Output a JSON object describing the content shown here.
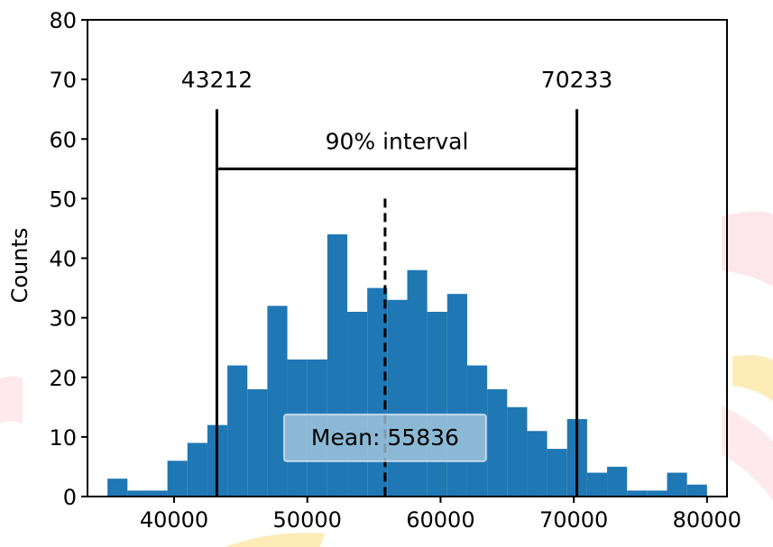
{
  "chart_data": {
    "type": "bar",
    "ylabel": "Counts",
    "xlim": [
      33500,
      81500
    ],
    "ylim": [
      0,
      80
    ],
    "xticks": [
      40000,
      50000,
      60000,
      70000,
      80000
    ],
    "yticks": [
      0,
      10,
      20,
      30,
      40,
      50,
      60,
      70,
      80
    ],
    "bar_color": "#1f77b4",
    "bins": [
      {
        "x0": 35000,
        "x1": 36500,
        "count": 3
      },
      {
        "x0": 36500,
        "x1": 38000,
        "count": 1
      },
      {
        "x0": 38000,
        "x1": 39500,
        "count": 1
      },
      {
        "x0": 39500,
        "x1": 41000,
        "count": 6
      },
      {
        "x0": 41000,
        "x1": 42500,
        "count": 9
      },
      {
        "x0": 42500,
        "x1": 44000,
        "count": 12
      },
      {
        "x0": 44000,
        "x1": 45500,
        "count": 22
      },
      {
        "x0": 45500,
        "x1": 47000,
        "count": 18
      },
      {
        "x0": 47000,
        "x1": 48500,
        "count": 32
      },
      {
        "x0": 48500,
        "x1": 50000,
        "count": 23
      },
      {
        "x0": 50000,
        "x1": 51500,
        "count": 23
      },
      {
        "x0": 51500,
        "x1": 53000,
        "count": 44
      },
      {
        "x0": 53000,
        "x1": 54500,
        "count": 31
      },
      {
        "x0": 54500,
        "x1": 56000,
        "count": 35
      },
      {
        "x0": 56000,
        "x1": 57500,
        "count": 33
      },
      {
        "x0": 57500,
        "x1": 59000,
        "count": 38
      },
      {
        "x0": 59000,
        "x1": 60500,
        "count": 31
      },
      {
        "x0": 60500,
        "x1": 62000,
        "count": 34
      },
      {
        "x0": 62000,
        "x1": 63500,
        "count": 22
      },
      {
        "x0": 63500,
        "x1": 65000,
        "count": 18
      },
      {
        "x0": 65000,
        "x1": 66500,
        "count": 15
      },
      {
        "x0": 66500,
        "x1": 68000,
        "count": 11
      },
      {
        "x0": 68000,
        "x1": 69500,
        "count": 8
      },
      {
        "x0": 69500,
        "x1": 71000,
        "count": 13
      },
      {
        "x0": 71000,
        "x1": 72500,
        "count": 4
      },
      {
        "x0": 72500,
        "x1": 74000,
        "count": 5
      },
      {
        "x0": 74000,
        "x1": 75500,
        "count": 1
      },
      {
        "x0": 75500,
        "x1": 77000,
        "count": 1
      },
      {
        "x0": 77000,
        "x1": 78500,
        "count": 4
      },
      {
        "x0": 78500,
        "x1": 80000,
        "count": 2
      }
    ],
    "interval": {
      "label": "90% interval",
      "lower": 43212,
      "upper": 70233,
      "lower_label": "43212",
      "upper_label": "70233",
      "bracket_top_y": 65,
      "bracket_y": 55
    },
    "mean": {
      "value": 55836,
      "label": "Mean: 55836",
      "line_top_y": 50
    }
  }
}
